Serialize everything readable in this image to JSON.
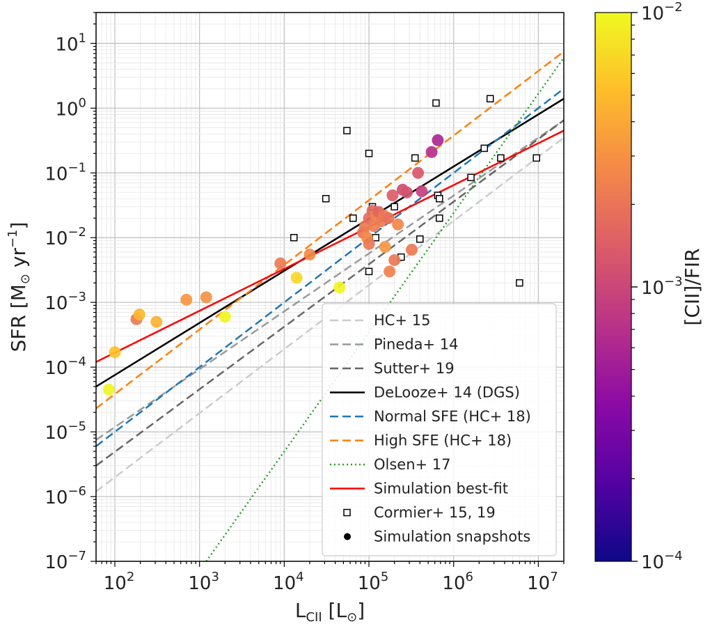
{
  "chart_data": {
    "type": "scatter",
    "xlabel": "L_CII [L_sun]",
    "ylabel": "SFR [M_sun yr^-1]",
    "xscale": "log",
    "yscale": "log",
    "xlim": [
      60,
      20000000
    ],
    "ylim": [
      1e-07,
      30
    ],
    "grid": true,
    "x_tick_exponents": [
      2,
      3,
      4,
      5,
      6,
      7
    ],
    "y_tick_exponents": [
      -7,
      -6,
      -5,
      -4,
      -3,
      -2,
      -1,
      0,
      1
    ],
    "tick_base": "10",
    "legend_position": "lower-right",
    "series": [
      {
        "name": "HC+ 15",
        "style": "dashed",
        "color": "#cccccc",
        "x": [
          60,
          20000000
        ],
        "y": [
          1.2e-06,
          0.35
        ]
      },
      {
        "name": "Pineda+ 14",
        "style": "dashed",
        "color": "#999999",
        "x": [
          60,
          20000000
        ],
        "y": [
          7.5e-06,
          0.65
        ]
      },
      {
        "name": "Sutter+ 19",
        "style": "dashed",
        "color": "#666666",
        "x": [
          60,
          20000000
        ],
        "y": [
          3e-06,
          0.65
        ]
      },
      {
        "name": "DeLooze+ 14 (DGS)",
        "style": "solid",
        "color": "#000000",
        "x": [
          60,
          20000000
        ],
        "y": [
          5e-05,
          1.4
        ]
      },
      {
        "name": "Normal SFE (HC+ 18)",
        "style": "dashed",
        "color": "#1f77b4",
        "x": [
          60,
          20000000
        ],
        "y": [
          6e-06,
          2.0
        ]
      },
      {
        "name": "High SFE (HC+ 18)",
        "style": "dashed",
        "color": "#ff7f0e",
        "x": [
          60,
          20000000
        ],
        "y": [
          2.3e-05,
          7.5
        ]
      },
      {
        "name": "Olsen+ 17",
        "style": "dotted",
        "color": "#2ca02c",
        "x": [
          1200,
          20000000
        ],
        "y": [
          1e-07,
          6.0
        ]
      },
      {
        "name": "Simulation best-fit",
        "style": "solid",
        "color": "#ff0000",
        "x": [
          60,
          20000000
        ],
        "y": [
          0.00012,
          0.45
        ]
      },
      {
        "name": "Cormier+ 15, 19",
        "style": "marker-square-open",
        "color": "#000000",
        "points": [
          [
            13000,
            0.01
          ],
          [
            31000,
            0.04
          ],
          [
            55000,
            0.45
          ],
          [
            65000,
            0.02
          ],
          [
            100000,
            0.2
          ],
          [
            100000,
            0.003
          ],
          [
            110000,
            0.03
          ],
          [
            120000,
            0.01
          ],
          [
            200000,
            0.03
          ],
          [
            240000,
            0.005
          ],
          [
            350000,
            0.17
          ],
          [
            400000,
            0.0095
          ],
          [
            620000,
            1.2
          ],
          [
            650000,
            0.045
          ],
          [
            680000,
            0.04
          ],
          [
            680000,
            0.02
          ],
          [
            1600000,
            0.085
          ],
          [
            2300000,
            0.24
          ],
          [
            2700000,
            1.4
          ],
          [
            3600000,
            0.17
          ],
          [
            6000000,
            0.002
          ],
          [
            9500000,
            0.17
          ]
        ]
      },
      {
        "name": "Simulation snapshots",
        "style": "marker-circle-filled",
        "color": "#000000",
        "points": [
          [
            85,
            4.5e-05,
            0.0095
          ],
          [
            100,
            0.00017,
            0.0055
          ],
          [
            180,
            0.00055,
            0.0022
          ],
          [
            195,
            0.00065,
            0.0048
          ],
          [
            310,
            0.0005,
            0.0045
          ],
          [
            700,
            0.0011,
            0.0032
          ],
          [
            1200,
            0.0012,
            0.003
          ],
          [
            2000,
            0.0006,
            0.0095
          ],
          [
            9000,
            0.004,
            0.0022
          ],
          [
            14000,
            0.0024,
            0.0068
          ],
          [
            20000,
            0.0055,
            0.0028
          ],
          [
            45000,
            0.0017,
            0.0095
          ],
          [
            85000,
            0.012,
            0.002
          ],
          [
            90000,
            0.015,
            0.0022
          ],
          [
            95000,
            0.01,
            0.0028
          ],
          [
            100000,
            0.02,
            0.0018
          ],
          [
            100000,
            0.008,
            0.0021
          ],
          [
            110000,
            0.026,
            0.0017
          ],
          [
            115000,
            0.015,
            0.0023
          ],
          [
            120000,
            0.022,
            0.0024
          ],
          [
            130000,
            0.025,
            0.0016
          ],
          [
            140000,
            0.018,
            0.0022
          ],
          [
            150000,
            0.022,
            0.0021
          ],
          [
            155000,
            0.0072,
            0.0032
          ],
          [
            170000,
            0.02,
            0.0019
          ],
          [
            175000,
            0.003,
            0.0024
          ],
          [
            190000,
            0.045,
            0.0014
          ],
          [
            200000,
            0.0045,
            0.0021
          ],
          [
            220000,
            0.016,
            0.0026
          ],
          [
            250000,
            0.055,
            0.0011
          ],
          [
            280000,
            0.05,
            0.0012
          ],
          [
            320000,
            0.0065,
            0.0022
          ],
          [
            380000,
            0.1,
            0.0013
          ],
          [
            420000,
            0.052,
            0.0009
          ],
          [
            550000,
            0.21,
            0.0007
          ],
          [
            650000,
            0.32,
            0.0006
          ]
        ]
      }
    ],
    "colorbar": {
      "label": "[CII]/FIR",
      "scale": "log",
      "range": [
        0.0001,
        0.01
      ],
      "tick_exponents": [
        -4,
        -3,
        -2
      ],
      "colormap": "plasma",
      "stops": [
        "#0d0887",
        "#5402a3",
        "#8b0aa5",
        "#b93289",
        "#db5c68",
        "#f48849",
        "#febd2a",
        "#f0f921"
      ]
    }
  }
}
